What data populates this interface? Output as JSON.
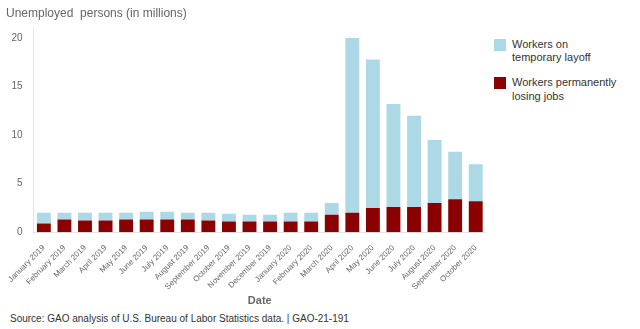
{
  "chart_data": {
    "type": "bar",
    "title": "Unemployed  persons (in millions)",
    "xlabel": "Date",
    "categories": [
      "January 2019",
      "February 2019",
      "March 2019",
      "April 2019",
      "May 2019",
      "June 2019",
      "July 2019",
      "August 2019",
      "September 2019",
      "October 2019",
      "November 2019",
      "December 2019",
      "January 2020",
      "February 2020",
      "March 2020",
      "April 2020",
      "May 2020",
      "June 2020",
      "July 2020",
      "August 2020",
      "September 2020",
      "October 2020"
    ],
    "series": [
      {
        "name": "Workers permanently\nlosing jobs",
        "color": "#8B0000",
        "values": [
          0.9,
          1.3,
          1.2,
          1.2,
          1.3,
          1.3,
          1.3,
          1.3,
          1.2,
          1.1,
          1.1,
          1.1,
          1.1,
          1.1,
          1.8,
          2.0,
          2.5,
          2.6,
          2.6,
          3.0,
          3.4,
          3.2
        ]
      },
      {
        "name": "Workers on\ntemporary layoff",
        "color": "#ADD8E6",
        "values": [
          1.1,
          0.7,
          0.8,
          0.8,
          0.7,
          0.8,
          0.8,
          0.7,
          0.8,
          0.8,
          0.7,
          0.7,
          0.9,
          0.9,
          1.2,
          18.0,
          15.3,
          10.6,
          9.4,
          6.5,
          4.9,
          3.8
        ]
      }
    ],
    "stacked": true,
    "ylim": [
      0,
      21
    ],
    "yticks": [
      0,
      5,
      10,
      15,
      20
    ],
    "grid": false,
    "annotations": [
      "Source: GAO analysis of U.S. Bureau of Labor Statistics data.  |  GAO-21-191"
    ]
  }
}
